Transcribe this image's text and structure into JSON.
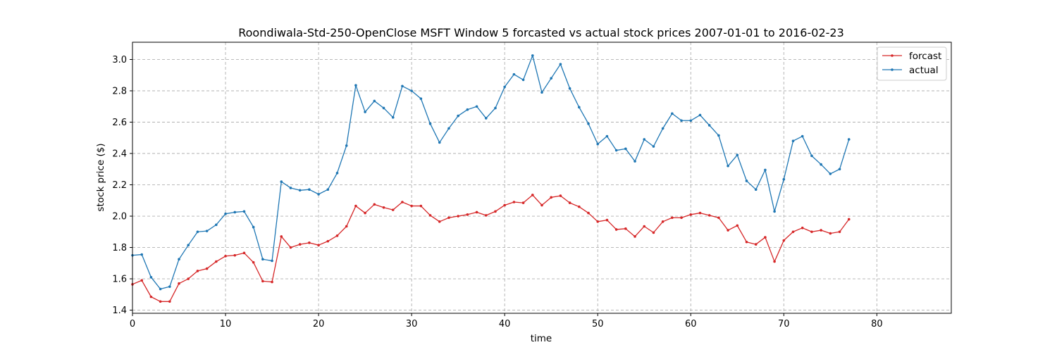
{
  "chart_data": {
    "type": "line",
    "title": "Roondiwala-Std-250-OpenClose MSFT Window 5 forcasted vs actual stock prices 2007-01-01 to 2016-02-23",
    "xlabel": "time",
    "ylabel": "stock price ($)",
    "xlim": [
      0,
      88
    ],
    "ylim": [
      1.38,
      3.11
    ],
    "xticks": [
      0,
      10,
      20,
      30,
      40,
      50,
      60,
      70,
      80
    ],
    "yticks": [
      1.4,
      1.6,
      1.8,
      2.0,
      2.2,
      2.4,
      2.6,
      2.8,
      3.0
    ],
    "grid": true,
    "legend_position": "top-right",
    "series": [
      {
        "name": "forcast",
        "color": "#d62728",
        "values": [
          1.565,
          1.59,
          1.485,
          1.455,
          1.455,
          1.57,
          1.6,
          1.65,
          1.665,
          1.71,
          1.745,
          1.75,
          1.765,
          1.705,
          1.585,
          1.58,
          1.87,
          1.8,
          1.82,
          1.83,
          1.815,
          1.84,
          1.875,
          1.935,
          2.065,
          2.02,
          2.075,
          2.055,
          2.04,
          2.09,
          2.065,
          2.065,
          2.005,
          1.965,
          1.99,
          2.0,
          2.01,
          2.025,
          2.005,
          2.03,
          2.07,
          2.09,
          2.085,
          2.135,
          2.07,
          2.12,
          2.13,
          2.085,
          2.06,
          2.02,
          1.965,
          1.975,
          1.915,
          1.92,
          1.87,
          1.935,
          1.895,
          1.965,
          1.99,
          1.99,
          2.01,
          2.02,
          2.005,
          1.99,
          1.91,
          1.94,
          1.835,
          1.82,
          1.865,
          1.71,
          1.845,
          1.9,
          1.925,
          1.9,
          1.91,
          1.89,
          1.9,
          1.98
        ]
      },
      {
        "name": "actual",
        "color": "#1f77b4",
        "values": [
          1.75,
          1.755,
          1.61,
          1.535,
          1.55,
          1.725,
          1.815,
          1.9,
          1.905,
          1.945,
          2.015,
          2.025,
          2.03,
          1.93,
          1.725,
          1.715,
          2.22,
          2.18,
          2.165,
          2.17,
          2.14,
          2.17,
          2.275,
          2.45,
          2.835,
          2.665,
          2.735,
          2.69,
          2.63,
          2.83,
          2.8,
          2.75,
          2.59,
          2.47,
          2.56,
          2.64,
          2.68,
          2.7,
          2.625,
          2.69,
          2.825,
          2.905,
          2.87,
          3.025,
          2.79,
          2.88,
          2.97,
          2.815,
          2.695,
          2.59,
          2.46,
          2.51,
          2.42,
          2.43,
          2.35,
          2.49,
          2.445,
          2.56,
          2.655,
          2.61,
          2.61,
          2.645,
          2.58,
          2.515,
          2.32,
          2.39,
          2.225,
          2.17,
          2.295,
          2.03,
          2.235,
          2.48,
          2.51,
          2.385,
          2.33,
          2.27,
          2.3,
          2.49
        ]
      }
    ]
  }
}
